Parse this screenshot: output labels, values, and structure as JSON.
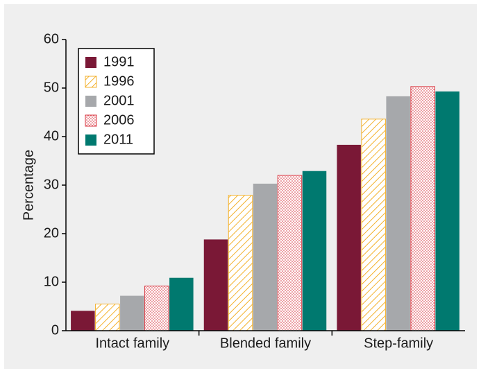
{
  "chart_data": {
    "type": "bar",
    "y_label": "Percentage",
    "categories": [
      "Intact family",
      "Blended family",
      "Step-family"
    ],
    "series": [
      {
        "name": "1991",
        "color": "#7a1836",
        "pattern": "solid",
        "values": [
          4.1,
          18.8,
          38.3
        ]
      },
      {
        "name": "1996",
        "color": "#f3b12c",
        "pattern": "hatch",
        "values": [
          5.5,
          27.9,
          43.6
        ]
      },
      {
        "name": "2001",
        "color": "#a6a8ab",
        "pattern": "solid",
        "values": [
          7.2,
          30.3,
          48.3
        ]
      },
      {
        "name": "2006",
        "color": "#d8323c",
        "pattern": "dots",
        "values": [
          9.2,
          32.0,
          50.3
        ]
      },
      {
        "name": "2011",
        "color": "#00796f",
        "pattern": "solid",
        "values": [
          10.9,
          32.9,
          49.3
        ]
      }
    ],
    "ylim": [
      0,
      60
    ],
    "yticks": [
      0,
      10,
      20,
      30,
      40,
      50,
      60
    ],
    "legend": "upper left"
  }
}
